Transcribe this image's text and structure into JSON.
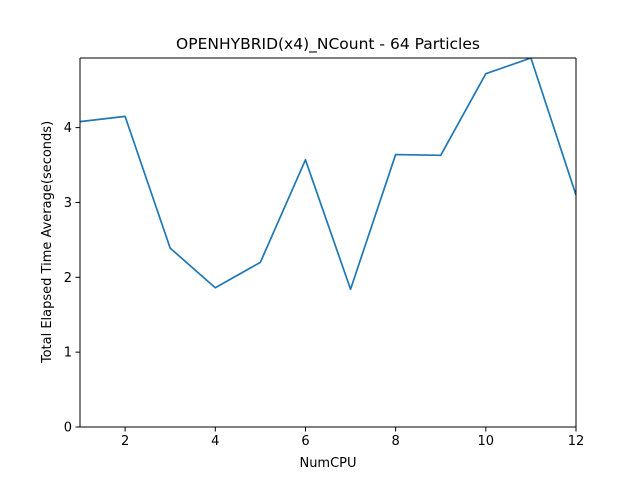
{
  "chart_data": {
    "type": "line",
    "title": "OPENHYBRID(x4)_NCount - 64 Particles",
    "xlabel": "NumCPU",
    "ylabel": "Total Elapsed Time Average(seconds)",
    "xlim": [
      1,
      12
    ],
    "ylim": [
      0,
      4.93
    ],
    "xticks": [
      2,
      4,
      6,
      8,
      10,
      12
    ],
    "yticks": [
      0,
      1,
      2,
      3,
      4
    ],
    "grid": false,
    "legend": "none",
    "series": [
      {
        "color": "#1f77b4",
        "x": [
          1,
          2,
          3,
          4,
          5,
          6,
          7,
          8,
          9,
          10,
          11,
          12
        ],
        "y": [
          4.08,
          4.15,
          2.39,
          1.86,
          2.2,
          3.57,
          1.84,
          3.64,
          3.63,
          4.72,
          4.93,
          3.1
        ]
      }
    ]
  }
}
